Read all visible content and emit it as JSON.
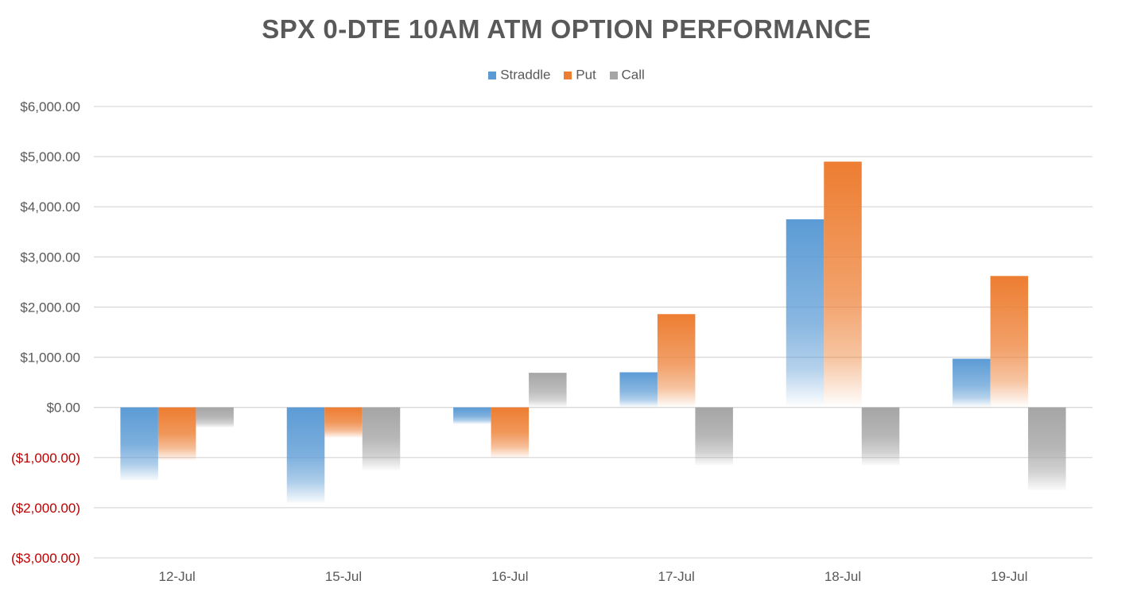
{
  "chart_data": {
    "type": "bar",
    "title": "SPX 0-DTE 10AM ATM OPTION PERFORMANCE",
    "categories": [
      "12-Jul",
      "15-Jul",
      "16-Jul",
      "17-Jul",
      "18-Jul",
      "19-Jul"
    ],
    "series": [
      {
        "name": "Straddle",
        "color": "#5B9BD5",
        "values": [
          -1450,
          -1900,
          -330,
          700,
          3750,
          970
        ]
      },
      {
        "name": "Put",
        "color": "#ED7D31",
        "values": [
          -1050,
          -600,
          -1000,
          1860,
          4900,
          2620
        ]
      },
      {
        "name": "Call",
        "color": "#A5A5A5",
        "values": [
          -400,
          -1250,
          690,
          -1150,
          -1150,
          -1650
        ]
      }
    ],
    "ylim": [
      -3000,
      6000
    ],
    "yticks": [
      6000,
      5000,
      4000,
      3000,
      2000,
      1000,
      0,
      -1000,
      -2000,
      -3000
    ],
    "ytick_labels": [
      "$6,000.00",
      "$5,000.00",
      "$4,000.00",
      "$3,000.00",
      "$2,000.00",
      "$1,000.00",
      "$0.00",
      "($1,000.00)",
      "($2,000.00)",
      "($3,000.00)"
    ],
    "xlabel": "",
    "ylabel": "",
    "grid": true,
    "legend_position": "top",
    "negative_label_color": "#C00000",
    "positive_label_color": "#595959"
  }
}
